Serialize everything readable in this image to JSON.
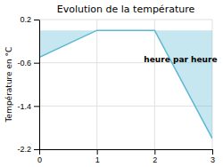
{
  "chart_data": {
    "type": "area",
    "title": "Evolution de la température",
    "ylabel": "Température en °C",
    "annotations": [
      {
        "text": "heure par heure",
        "x": 2.45,
        "y": -0.55
      }
    ],
    "x": [
      0,
      1,
      2,
      3
    ],
    "values": [
      -0.5,
      0.0,
      0.0,
      -2.0
    ],
    "color": "#5bb8d4",
    "xlim": [
      0,
      3
    ],
    "ylim": [
      -2.2,
      0.2
    ],
    "xticks": [
      0,
      1,
      2,
      3
    ],
    "yticks": [
      0.2,
      -0.6,
      -1.4,
      -2.2
    ],
    "grid": true
  }
}
